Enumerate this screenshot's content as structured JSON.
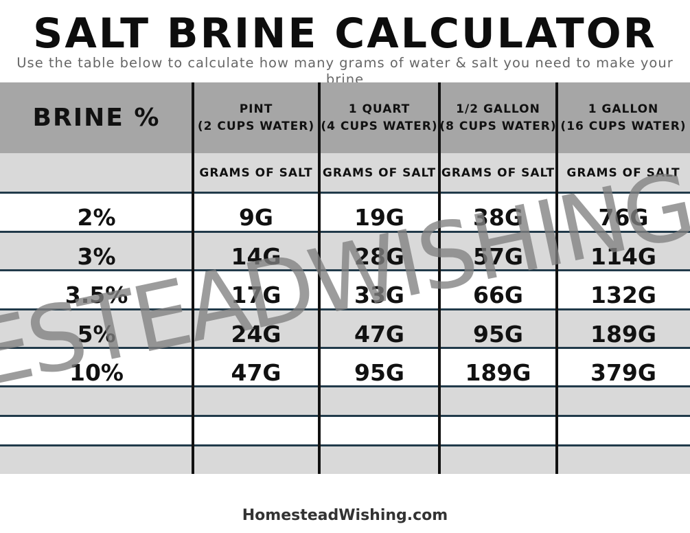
{
  "title": "SALT BRINE CALCULATOR",
  "subtitle": "Use the table below to calculate how many grams of water & salt you need to make your brine",
  "table": {
    "header_label": "BRINE %",
    "columns": [
      "PINT\n(2 CUPS WATER)",
      "1 QUART\n(4 CUPS WATER)",
      "1/2 GALLON\n(8 CUPS WATER)",
      "1 GALLON\n(16 CUPS WATER)"
    ],
    "sub_label": "GRAMS OF SALT",
    "rows": [
      {
        "brine": "2%",
        "values": [
          "9G",
          "19G",
          "38G",
          "76G"
        ]
      },
      {
        "brine": "3%",
        "values": [
          "14G",
          "28G",
          "57G",
          "114G"
        ]
      },
      {
        "brine": "3.5%",
        "values": [
          "17G",
          "33G",
          "66G",
          "132G"
        ]
      },
      {
        "brine": "5%",
        "values": [
          "24G",
          "47G",
          "95G",
          "189G"
        ]
      },
      {
        "brine": "10%",
        "values": [
          "47G",
          "95G",
          "189G",
          "379G"
        ]
      }
    ]
  },
  "watermark": "HOMESTEADWISHING.COM",
  "footer": "HomesteadWishing.com",
  "colors": {
    "header_bg": "#a6a6a6",
    "band_gray": "#d9d9d9",
    "row_rule": "#213a4a",
    "column_rule": "#111111",
    "watermark": "#808080"
  }
}
